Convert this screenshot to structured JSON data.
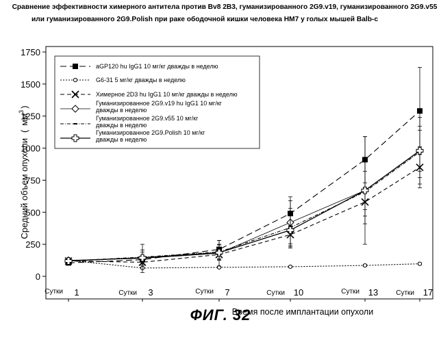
{
  "title_lines": [
    "Сравнение эффективности химерного антитела против Bv8 2B3, гуманизированного 2G9.v19, гуманизированного 2G9.v55",
    "или гуманизированного 2G9.Polish при раке ободочной кишки человека HM7 у голых мышей Balb-c"
  ],
  "figure_caption": "ФИГ. 32",
  "chart_data": {
    "type": "line",
    "xlabel": "Время после имплантации опухоли",
    "ylabel": "Средний объем опухоли",
    "ylabel_unit": "мм",
    "ylabel_unit_sup": "3",
    "ylim": [
      0,
      1750
    ],
    "yticks": [
      0,
      250,
      500,
      750,
      1000,
      1250,
      1500,
      1750
    ],
    "day_prefix": "Сутки",
    "x": [
      1,
      3,
      7,
      10,
      13,
      17
    ],
    "x_tick_labels": [
      "1",
      "3",
      "7",
      "10",
      "13",
      "17"
    ],
    "legend_position": "top-left",
    "grid": false,
    "series": [
      {
        "name_lines": [
          "aGP120 hu IgG1 10 мг/кг дважды в неделю"
        ],
        "marker": "filled-square",
        "dash": "long-dash",
        "values": [
          105,
          130,
          210,
          490,
          910,
          1290
        ],
        "error": [
          15,
          30,
          70,
          100,
          180,
          340
        ]
      },
      {
        "name_lines": [
          "G6-31 5 мг/кг дважды в неделю"
        ],
        "marker": "small-circle",
        "dash": "dotted",
        "values": [
          125,
          65,
          70,
          75,
          85,
          98
        ],
        "error": [
          8,
          6,
          6,
          6,
          8,
          8
        ]
      },
      {
        "name_lines": [
          "Химерное 2D3 hu IgG1 10 мг/кг дважды в неделю"
        ],
        "marker": "x-mark",
        "dash": "dash",
        "values": [
          120,
          110,
          170,
          325,
          580,
          850
        ],
        "error": [
          10,
          15,
          40,
          70,
          110,
          160
        ]
      },
      {
        "name_lines": [
          "Гуманизированное 2G9.v19 hu IgG1 10 мг/кг",
          "дважды в неделю"
        ],
        "marker": "open-diamond",
        "dash": "solid-thin",
        "values": [
          125,
          140,
          180,
          420,
          670,
          980
        ],
        "error": [
          12,
          110,
          100,
          200,
          420,
          260
        ]
      },
      {
        "name_lines": [
          "Гуманизированное 2G9.v55 10 мг/кг",
          "дважды в неделю"
        ],
        "marker": "small-dash",
        "dash": "dash-dot",
        "values": [
          120,
          150,
          190,
          380,
          660,
          970
        ],
        "error": [
          10,
          40,
          60,
          150,
          250,
          200
        ]
      },
      {
        "name_lines": [
          "Гуманизированное 2G9.Polish 10 мг/кг",
          "дважды в неделю"
        ],
        "marker": "open-cross",
        "dash": "solid",
        "values": [
          120,
          145,
          185,
          360,
          670,
          980
        ],
        "error": [
          10,
          60,
          60,
          120,
          150,
          160
        ]
      }
    ]
  }
}
